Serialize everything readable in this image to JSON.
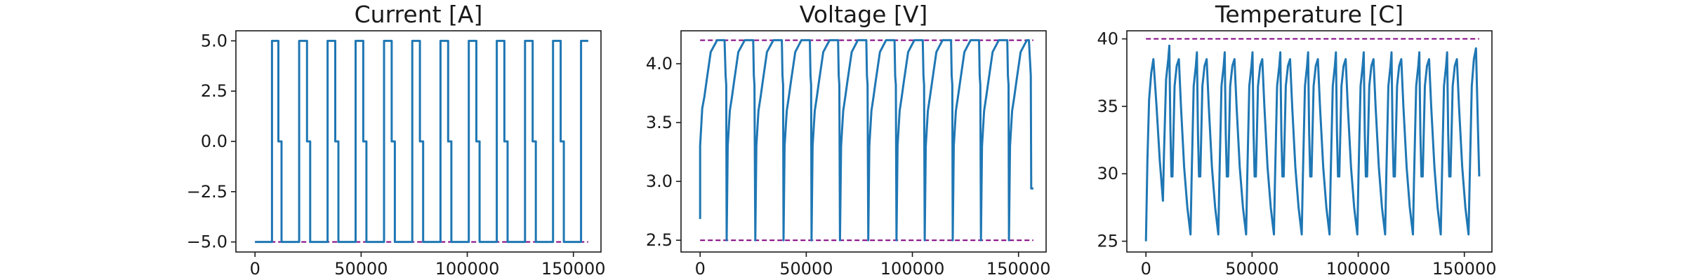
{
  "chart_data": [
    {
      "type": "line",
      "title": "Current [A]",
      "xlim": [
        -9000,
        163000
      ],
      "ylim": [
        -5.5,
        5.5
      ],
      "x_ticks": [
        0,
        50000,
        100000,
        150000
      ],
      "x_tick_labels": [
        "0",
        "50000",
        "100000",
        "150000"
      ],
      "y_ticks": [
        -5.0,
        -2.5,
        0.0,
        2.5,
        5.0
      ],
      "y_tick_labels": [
        "−5.0",
        "−2.5",
        "0.0",
        "2.5",
        "5.0"
      ],
      "limit_line": -5.0,
      "series": [
        {
          "x": [
            0,
            8000,
            8000,
            11000,
            11000,
            12500,
            12500,
            20800,
            20800,
            24500,
            24500,
            26000,
            26000,
            34200,
            34200,
            37800,
            37800,
            39300,
            39300,
            47400,
            47400,
            51000,
            51000,
            52500,
            52500,
            60800,
            60800,
            64400,
            64400,
            65900,
            65900,
            74100,
            74100,
            77700,
            77700,
            79200,
            79200,
            87400,
            87400,
            91000,
            91000,
            92500,
            92500,
            100700,
            100700,
            104300,
            104300,
            105800,
            105800,
            113900,
            113900,
            117500,
            117500,
            119000,
            119000,
            127200,
            127200,
            130800,
            130800,
            132300,
            132300,
            140400,
            140400,
            144000,
            144000,
            145500,
            145500,
            153600,
            153600,
            157000
          ],
          "y": [
            -5.0,
            -5.0,
            5.0,
            5.0,
            0.0,
            0.0,
            -5.0,
            -5.0,
            5.0,
            5.0,
            0.0,
            0.0,
            -5.0,
            -5.0,
            5.0,
            5.0,
            0.0,
            0.0,
            -5.0,
            -5.0,
            5.0,
            5.0,
            0.0,
            0.0,
            -5.0,
            -5.0,
            5.0,
            5.0,
            0.0,
            0.0,
            -5.0,
            -5.0,
            5.0,
            5.0,
            0.0,
            0.0,
            -5.0,
            -5.0,
            5.0,
            5.0,
            0.0,
            0.0,
            -5.0,
            -5.0,
            5.0,
            5.0,
            0.0,
            0.0,
            -5.0,
            -5.0,
            5.0,
            5.0,
            0.0,
            0.0,
            -5.0,
            -5.0,
            5.0,
            5.0,
            0.0,
            0.0,
            -5.0,
            -5.0,
            5.0,
            5.0,
            0.0,
            0.0,
            -5.0,
            -5.0,
            5.0,
            5.0
          ]
        }
      ]
    },
    {
      "type": "line",
      "title": "Voltage [V]",
      "xlim": [
        -9000,
        163000
      ],
      "ylim": [
        2.4,
        4.28
      ],
      "x_ticks": [
        0,
        50000,
        100000,
        150000
      ],
      "x_tick_labels": [
        "0",
        "50000",
        "100000",
        "150000"
      ],
      "y_ticks": [
        2.5,
        3.0,
        3.5,
        4.0
      ],
      "y_tick_labels": [
        "2.5",
        "3.0",
        "3.5",
        "4.0"
      ],
      "limit_lines": [
        4.2,
        2.5
      ],
      "series": [
        {
          "x": [
            0,
            0,
            1000,
            2000,
            3000,
            5000,
            8000,
            8000,
            9000,
            11500,
            12000,
            12300,
            12500,
            13000,
            14000,
            15000,
            16000,
            18000,
            21000,
            21000,
            22000,
            25000,
            25300,
            25600,
            26000,
            26500,
            27500,
            28500,
            29500,
            31500,
            34500,
            34500,
            35500,
            38500,
            38800,
            39100,
            39300,
            39800,
            40800,
            41800,
            42800,
            44800,
            47700,
            47700,
            48700,
            51700,
            52000,
            52300,
            52500,
            53000,
            54000,
            55000,
            56000,
            58000,
            61000,
            61000,
            62000,
            65000,
            65300,
            65600,
            65900,
            66400,
            67400,
            68400,
            69400,
            71400,
            74300,
            74300,
            75300,
            78300,
            78600,
            78900,
            79200,
            79700,
            80700,
            81700,
            82700,
            84700,
            87600,
            87600,
            88600,
            91600,
            91900,
            92200,
            92500,
            93000,
            94000,
            95000,
            96000,
            98000,
            100900,
            100900,
            101900,
            104900,
            105200,
            105500,
            105800,
            106300,
            107300,
            108300,
            109300,
            111300,
            114200,
            114200,
            115200,
            118200,
            118500,
            118800,
            119000,
            119500,
            120500,
            121500,
            122500,
            124500,
            127400,
            127400,
            128400,
            131400,
            131700,
            132000,
            132300,
            132800,
            133800,
            134800,
            135800,
            137800,
            140700,
            140700,
            141700,
            144700,
            145000,
            145300,
            145500,
            146000,
            147000,
            148000,
            149000,
            151000,
            153900,
            153900,
            154900,
            155500,
            155800,
            156000,
            157000
          ],
          "y": [
            2.68,
            3.3,
            3.62,
            3.72,
            3.85,
            4.1,
            4.2,
            4.2,
            4.2,
            4.2,
            3.9,
            3.82,
            2.5,
            3.3,
            3.6,
            3.72,
            3.85,
            4.1,
            4.2,
            4.2,
            4.2,
            4.2,
            3.9,
            3.82,
            2.5,
            3.3,
            3.6,
            3.72,
            3.85,
            4.1,
            4.2,
            4.2,
            4.2,
            4.2,
            3.9,
            3.82,
            2.5,
            3.3,
            3.6,
            3.72,
            3.85,
            4.1,
            4.2,
            4.2,
            4.2,
            4.2,
            3.9,
            3.82,
            2.5,
            3.3,
            3.6,
            3.72,
            3.85,
            4.1,
            4.2,
            4.2,
            4.2,
            4.2,
            3.9,
            3.82,
            2.5,
            3.3,
            3.6,
            3.72,
            3.85,
            4.1,
            4.2,
            4.2,
            4.2,
            4.2,
            3.9,
            3.82,
            2.5,
            3.3,
            3.6,
            3.72,
            3.85,
            4.1,
            4.2,
            4.2,
            4.2,
            4.2,
            3.9,
            3.82,
            2.5,
            3.3,
            3.6,
            3.72,
            3.85,
            4.1,
            4.2,
            4.2,
            4.2,
            4.2,
            3.9,
            3.82,
            2.5,
            3.3,
            3.6,
            3.72,
            3.85,
            4.1,
            4.2,
            4.2,
            4.2,
            4.2,
            3.9,
            3.82,
            2.5,
            3.3,
            3.6,
            3.72,
            3.85,
            4.1,
            4.2,
            4.2,
            4.2,
            4.2,
            3.9,
            3.82,
            2.5,
            3.3,
            3.6,
            3.72,
            3.85,
            4.1,
            4.2,
            4.2,
            4.2,
            4.2,
            3.9,
            3.82,
            2.5,
            3.3,
            3.6,
            3.72,
            3.85,
            4.1,
            4.2,
            4.2,
            4.2,
            4.0,
            3.9,
            2.94,
            2.94
          ]
        }
      ]
    },
    {
      "type": "line",
      "title": "Temperature [C]",
      "xlim": [
        -9000,
        163000
      ],
      "ylim": [
        24.2,
        40.6
      ],
      "x_ticks": [
        0,
        50000,
        100000,
        150000
      ],
      "x_tick_labels": [
        "0",
        "50000",
        "100000",
        "150000"
      ],
      "y_ticks": [
        25,
        30,
        35,
        40
      ],
      "y_tick_labels": [
        "25",
        "30",
        "35",
        "40"
      ],
      "limit_line": 40,
      "series": [
        {
          "x": [
            0,
            700,
            1500,
            2500,
            3500,
            5000,
            6500,
            8000,
            8500,
            9500,
            10500,
            11000,
            11500,
            12000,
            12500,
            13500,
            14500,
            15500,
            16500,
            18000,
            19500,
            21000,
            21500,
            22500,
            23500,
            24000,
            24500,
            25000,
            25600,
            26600,
            27600,
            28600,
            29600,
            31100,
            32600,
            34100,
            34600,
            35600,
            36600,
            37100,
            37600,
            38100,
            38700,
            39700,
            40700,
            41700,
            42700,
            44200,
            45700,
            47200,
            47700,
            48700,
            49700,
            50200,
            50700,
            51200,
            51800,
            52800,
            53800,
            54800,
            55800,
            57300,
            58800,
            60300,
            60800,
            61800,
            62800,
            63300,
            63800,
            64300,
            64900,
            65900,
            66900,
            67900,
            68900,
            70400,
            71900,
            73400,
            73900,
            74900,
            75900,
            76400,
            76900,
            77400,
            78000,
            79000,
            80000,
            81000,
            82000,
            83500,
            85000,
            86500,
            87000,
            88000,
            89000,
            89500,
            90000,
            90500,
            91100,
            92100,
            93100,
            94100,
            95100,
            96600,
            98100,
            99600,
            100100,
            101100,
            102100,
            102600,
            103100,
            103600,
            104200,
            105200,
            106200,
            107200,
            108200,
            109700,
            111200,
            112700,
            113200,
            114200,
            115200,
            115700,
            116200,
            116700,
            117300,
            118300,
            119300,
            120300,
            121300,
            122800,
            124300,
            125800,
            126300,
            127300,
            128300,
            128800,
            129300,
            129800,
            130400,
            131400,
            132400,
            133400,
            134400,
            135900,
            137400,
            138900,
            139400,
            140400,
            141400,
            141900,
            142400,
            142900,
            143500,
            144500,
            145500,
            146500,
            147500,
            149000,
            150500,
            152000,
            152500,
            153500,
            154500,
            155500,
            156500,
            157000
          ],
          "y": [
            25.0,
            31.0,
            35.5,
            37.5,
            38.5,
            35.0,
            31.0,
            28.0,
            31.5,
            37.0,
            38.5,
            39.5,
            33.5,
            29.8,
            29.8,
            36.5,
            38.0,
            38.5,
            35.0,
            30.5,
            27.5,
            25.5,
            29.5,
            36.5,
            38.0,
            39.0,
            33.0,
            29.8,
            29.8,
            36.5,
            38.0,
            38.5,
            35.0,
            30.5,
            27.5,
            25.5,
            29.5,
            36.5,
            38.0,
            39.0,
            33.0,
            29.8,
            29.8,
            36.5,
            38.0,
            38.5,
            35.0,
            30.5,
            27.5,
            25.5,
            29.5,
            36.5,
            38.0,
            39.0,
            33.0,
            29.8,
            29.8,
            36.5,
            38.0,
            38.5,
            35.0,
            30.5,
            27.5,
            25.5,
            29.5,
            36.5,
            38.0,
            39.0,
            33.0,
            29.8,
            29.8,
            36.5,
            38.0,
            38.5,
            35.0,
            30.5,
            27.5,
            25.5,
            29.5,
            36.5,
            38.0,
            39.0,
            33.0,
            29.8,
            29.8,
            36.5,
            38.0,
            38.5,
            35.0,
            30.5,
            27.5,
            25.5,
            29.5,
            36.5,
            38.0,
            39.0,
            33.0,
            29.8,
            29.8,
            36.5,
            38.0,
            38.5,
            35.0,
            30.5,
            27.5,
            25.5,
            29.5,
            36.5,
            38.0,
            39.0,
            33.0,
            29.8,
            29.8,
            36.5,
            38.0,
            38.5,
            35.0,
            30.5,
            27.5,
            25.5,
            29.5,
            36.5,
            38.0,
            39.0,
            33.0,
            29.8,
            29.8,
            36.5,
            38.0,
            38.5,
            35.0,
            30.5,
            27.5,
            25.5,
            29.5,
            36.5,
            38.0,
            39.0,
            33.0,
            29.8,
            29.8,
            36.5,
            38.0,
            38.5,
            35.0,
            30.5,
            27.5,
            25.5,
            29.5,
            36.5,
            38.0,
            39.0,
            33.0,
            29.8,
            29.8,
            36.5,
            38.0,
            38.5,
            35.0,
            30.5,
            27.5,
            25.5,
            29.5,
            36.5,
            38.5,
            39.3,
            33.0,
            29.8
          ]
        }
      ]
    }
  ],
  "colors": {
    "series": "#1f77b4",
    "limit": "#800080",
    "axis": "#1a1a1a"
  }
}
